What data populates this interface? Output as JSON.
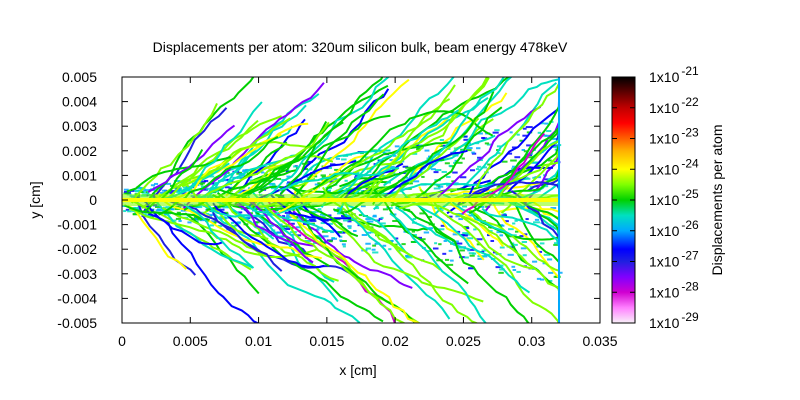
{
  "chart_data": {
    "type": "heatmap",
    "title": "Displacements per atom: 320um silicon bulk, beam energy 478keV",
    "xlabel": "x [cm]",
    "ylabel": "y [cm]",
    "xlim": [
      0,
      0.035
    ],
    "ylim": [
      -0.005,
      0.005
    ],
    "x_ticks": [
      0,
      0.005,
      0.01,
      0.015,
      0.02,
      0.025,
      0.03,
      0.035
    ],
    "x_tick_labels": [
      "0",
      "0.005",
      "0.01",
      "0.015",
      "0.02",
      "0.025",
      "0.03",
      "0.035"
    ],
    "y_ticks": [
      -0.005,
      -0.004,
      -0.003,
      -0.002,
      -0.001,
      0,
      0.001,
      0.002,
      0.003,
      0.004,
      0.005
    ],
    "y_tick_labels": [
      "-0.005",
      "-0.004",
      "-0.003",
      "-0.002",
      "-0.001",
      "0",
      "0.001",
      "0.002",
      "0.003",
      "0.004",
      "0.005"
    ],
    "material_thickness_cm": 0.032,
    "colorbar": {
      "label": "Displacements per atom",
      "scale": "log",
      "range": [
        1e-29,
        1e-21
      ],
      "tick_exponents": [
        -29,
        -28,
        -27,
        -26,
        -25,
        -24,
        -23,
        -22,
        -21
      ],
      "tick_base": "1x10",
      "palette": [
        {
          "value_exp": -29,
          "color": "#f8f0f8"
        },
        {
          "value_exp": -28.5,
          "color": "#ff80ff"
        },
        {
          "value_exp": -28,
          "color": "#d000d0"
        },
        {
          "value_exp": -27.5,
          "color": "#8000ff"
        },
        {
          "value_exp": -27,
          "color": "#2020e0"
        },
        {
          "value_exp": -26.6,
          "color": "#0000ff"
        },
        {
          "value_exp": -26,
          "color": "#00a8ff"
        },
        {
          "value_exp": -25.5,
          "color": "#00e0c0"
        },
        {
          "value_exp": -25,
          "color": "#00d000"
        },
        {
          "value_exp": -24.5,
          "color": "#80ff00"
        },
        {
          "value_exp": -24,
          "color": "#ffff00"
        },
        {
          "value_exp": -23.4,
          "color": "#ffb000"
        },
        {
          "value_exp": -23,
          "color": "#ff6000"
        },
        {
          "value_exp": -22.5,
          "color": "#ff0000"
        },
        {
          "value_exp": -22,
          "color": "#c00000"
        },
        {
          "value_exp": -21.5,
          "color": "#600000"
        },
        {
          "value_exp": -21,
          "color": "#000000"
        }
      ]
    }
  }
}
